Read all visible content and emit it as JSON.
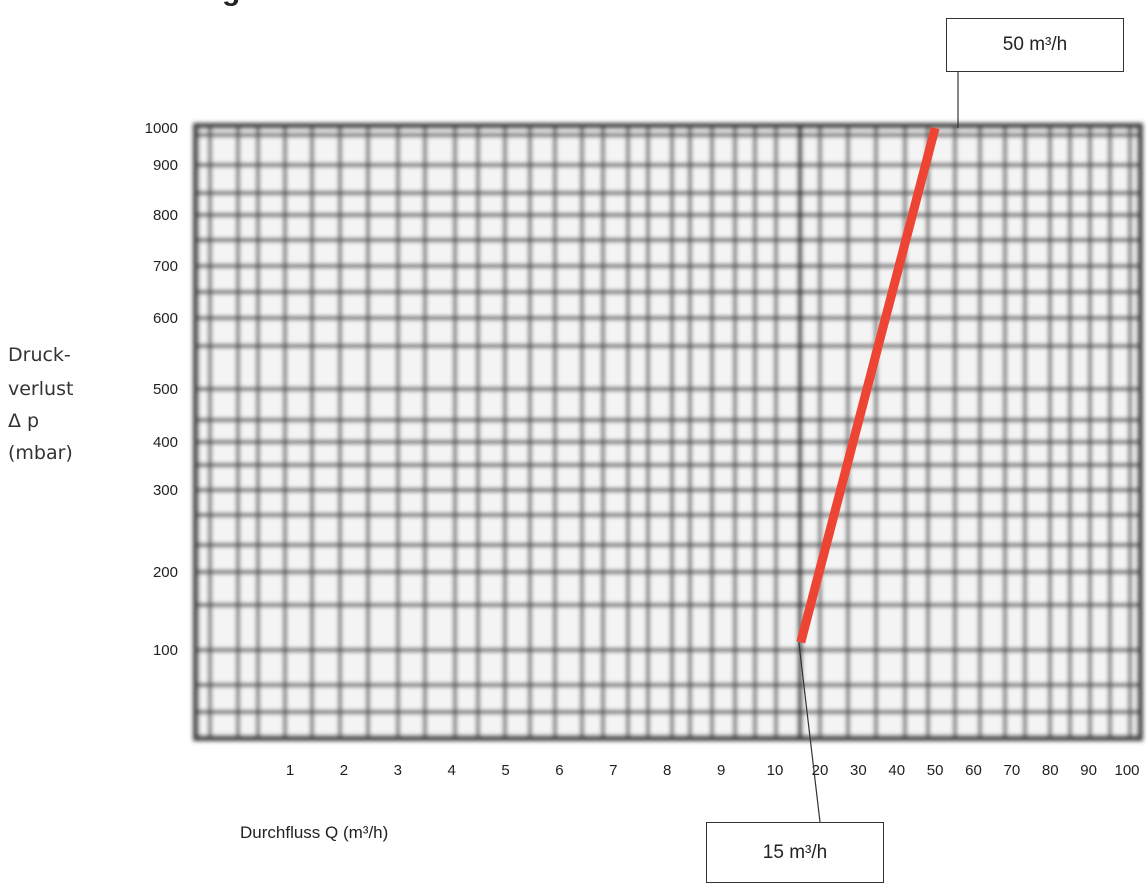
{
  "header_fragment": "g",
  "chart_data": {
    "type": "line",
    "title": "",
    "xlabel": "Durchfluss Q (m³/h)",
    "ylabel_lines": [
      "Druck-",
      "verlust",
      "Δ p",
      "(mbar)"
    ],
    "x_ticks": [
      "1",
      "2",
      "3",
      "4",
      "5",
      "6",
      "7",
      "8",
      "9",
      "10",
      "20",
      "30",
      "40",
      "50",
      "60",
      "70",
      "80",
      "90",
      "100"
    ],
    "y_ticks": [
      "1000",
      "900",
      "800",
      "700",
      "600",
      "500",
      "400",
      "300",
      "200",
      "100"
    ],
    "grid": true,
    "series": [
      {
        "color": "#ee4433",
        "x": [
          15,
          50
        ],
        "y": [
          110,
          1000
        ]
      }
    ],
    "annotations": [
      {
        "text": "50 m³/h",
        "x": 50,
        "y": 1000,
        "position": "top"
      },
      {
        "text": "15 m³/h",
        "x": 15,
        "y": 110,
        "position": "bottom"
      }
    ]
  }
}
